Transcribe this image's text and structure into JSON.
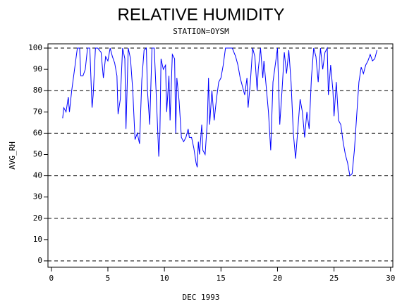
{
  "chart_data": {
    "type": "line",
    "title": "RELATIVE HUMIDITY",
    "subtitle": "STATION=OYSM",
    "xlabel": "DEC 1993",
    "ylabel": "AVG_RH",
    "xlim": [
      -0.3,
      30.2
    ],
    "ylim": [
      -3,
      102
    ],
    "xticks": [
      0,
      5,
      10,
      15,
      20,
      25,
      30
    ],
    "yticks": [
      0,
      10,
      20,
      30,
      40,
      50,
      60,
      70,
      80,
      90,
      100
    ],
    "ygrid": [
      0,
      20,
      40,
      60,
      80,
      100
    ],
    "series": [
      {
        "name": "AVG_RH",
        "color": "#0000ff",
        "x": [
          1.0,
          1.1,
          1.3,
          1.5,
          1.6,
          1.8,
          2.0,
          2.2,
          2.3,
          2.5,
          2.6,
          2.8,
          3.0,
          3.2,
          3.4,
          3.6,
          3.7,
          3.9,
          4.1,
          4.4,
          4.6,
          4.8,
          5.0,
          5.2,
          5.4,
          5.6,
          5.8,
          5.9,
          6.1,
          6.3,
          6.5,
          6.6,
          6.8,
          7.0,
          7.2,
          7.4,
          7.6,
          7.8,
          8.0,
          8.2,
          8.4,
          8.5,
          8.7,
          8.9,
          9.1,
          9.3,
          9.5,
          9.6,
          9.7,
          9.9,
          10.1,
          10.2,
          10.4,
          10.5,
          10.7,
          10.9,
          11.0,
          11.1,
          11.3,
          11.5,
          11.7,
          11.9,
          12.1,
          12.2,
          12.4,
          12.6,
          12.8,
          12.9,
          13.0,
          13.1,
          13.3,
          13.4,
          13.6,
          13.8,
          13.9,
          14.0,
          14.2,
          14.4,
          14.6,
          14.8,
          15.0,
          15.2,
          15.4,
          15.7,
          16.0,
          16.3,
          16.5,
          16.7,
          16.9,
          17.1,
          17.3,
          17.4,
          17.6,
          17.8,
          18.0,
          18.2,
          18.3,
          18.5,
          18.7,
          18.8,
          19.0,
          19.2,
          19.4,
          19.6,
          19.8,
          20.0,
          20.2,
          20.4,
          20.6,
          20.8,
          21.0,
          21.2,
          21.4,
          21.6,
          21.8,
          22.0,
          22.2,
          22.4,
          22.6,
          22.8,
          23.0,
          23.2,
          23.4,
          23.6,
          23.8,
          24.0,
          24.2,
          24.4,
          24.5,
          24.7,
          24.9,
          25.0,
          25.2,
          25.4,
          25.6,
          25.8,
          26.0,
          26.2,
          26.4,
          26.6,
          26.8,
          27.0,
          27.2,
          27.4,
          27.6,
          27.8,
          28.0,
          28.2,
          28.4,
          28.6,
          28.8
        ],
        "values": [
          67,
          72,
          70,
          77,
          70,
          80,
          88,
          96,
          100,
          100,
          87,
          87,
          90,
          100,
          100,
          72,
          78,
          100,
          100,
          98,
          86,
          96,
          94,
          100,
          96,
          93,
          87,
          69,
          76,
          100,
          95,
          62,
          100,
          95,
          80,
          57,
          60,
          55,
          85,
          99,
          100,
          80,
          64,
          100,
          100,
          75,
          49,
          60,
          95,
          90,
          92,
          70,
          87,
          66,
          97,
          95,
          60,
          86,
          75,
          58,
          56,
          58,
          62,
          58,
          58,
          53,
          46,
          44,
          56,
          50,
          64,
          52,
          50,
          66,
          86,
          64,
          80,
          66,
          76,
          84,
          86,
          92,
          100,
          100,
          100,
          96,
          92,
          86,
          82,
          78,
          86,
          72,
          84,
          100,
          96,
          80,
          90,
          100,
          86,
          94,
          82,
          70,
          52,
          84,
          92,
          100,
          64,
          80,
          98,
          88,
          99,
          84,
          60,
          48,
          62,
          76,
          70,
          58,
          70,
          62,
          86,
          100,
          96,
          84,
          100,
          90,
          98,
          100,
          78,
          92,
          80,
          68,
          84,
          66,
          64,
          56,
          50,
          46,
          40,
          41,
          52,
          68,
          84,
          91,
          88,
          92,
          94,
          97,
          94,
          95,
          99
        ]
      }
    ]
  }
}
